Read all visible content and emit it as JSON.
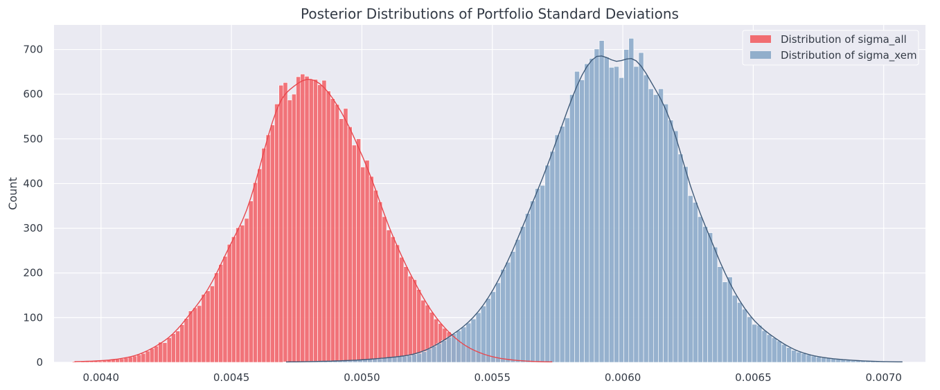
{
  "chart_data": {
    "type": "histogram",
    "title": "Posterior Distributions of Portfolio Standard Deviations",
    "xlabel": "",
    "ylabel": "Count",
    "xlim": [
      0.00382,
      0.00716
    ],
    "ylim": [
      0,
      755
    ],
    "x_ticks": [
      "0.0040",
      "0.0045",
      "0.0050",
      "0.0055",
      "0.0060",
      "0.0065",
      "0.0070"
    ],
    "x_tick_values": [
      0.004,
      0.0045,
      0.005,
      0.0055,
      0.006,
      0.0065,
      0.007
    ],
    "y_ticks": [
      "0",
      "100",
      "200",
      "300",
      "400",
      "500",
      "600",
      "700"
    ],
    "y_tick_values": [
      0,
      100,
      200,
      300,
      400,
      500,
      600,
      700
    ],
    "grid": true,
    "legend_position": "top-right",
    "series": [
      {
        "name": "Distribution of sigma_all",
        "color": "#f16d72",
        "kde_color": "#e8474d",
        "bin_start": 0.00389,
        "bin_width": 1.65e-05,
        "counts": [
          2,
          1,
          2,
          2,
          3,
          3,
          3,
          4,
          5,
          6,
          7,
          8,
          10,
          12,
          14,
          17,
          20,
          25,
          31,
          36,
          45,
          44,
          55,
          64,
          70,
          84,
          98,
          115,
          122,
          127,
          152,
          160,
          171,
          200,
          219,
          237,
          264,
          281,
          301,
          307,
          322,
          361,
          402,
          433,
          479,
          509,
          531,
          578,
          620,
          626,
          587,
          600,
          639,
          645,
          640,
          633,
          633,
          621,
          631,
          607,
          590,
          577,
          545,
          568,
          527,
          486,
          500,
          437,
          452,
          416,
          385,
          359,
          326,
          296,
          281,
          263,
          235,
          214,
          193,
          185,
          163,
          139,
          128,
          112,
          97,
          87,
          76,
          68,
          56,
          48,
          41,
          35,
          30,
          25,
          21,
          18,
          15,
          12,
          10,
          8,
          7,
          6,
          5,
          4,
          3,
          3,
          2,
          2,
          1,
          1,
          1,
          1
        ]
      },
      {
        "name": "Distribution of sigma_xem",
        "color": "#91aecb",
        "kde_color": "#3f5a78",
        "bin_start": 0.0047,
        "bin_width": 1.89e-05,
        "counts": [
          1,
          1,
          1,
          1,
          1,
          2,
          2,
          2,
          2,
          3,
          3,
          3,
          4,
          4,
          5,
          5,
          6,
          7,
          8,
          8,
          10,
          11,
          12,
          13,
          14,
          15,
          18,
          20,
          24,
          30,
          36,
          42,
          49,
          56,
          64,
          71,
          79,
          88,
          97,
          111,
          126,
          143,
          158,
          178,
          208,
          224,
          248,
          275,
          304,
          333,
          361,
          389,
          396,
          441,
          472,
          509,
          528,
          547,
          599,
          651,
          632,
          668,
          680,
          701,
          720,
          683,
          660,
          662,
          637,
          700,
          725,
          662,
          693,
          643,
          612,
          599,
          612,
          578,
          542,
          518,
          466,
          438,
          373,
          358,
          326,
          304,
          290,
          258,
          214,
          180,
          191,
          150,
          134,
          119,
          102,
          85,
          83,
          71,
          62,
          55,
          48,
          40,
          33,
          27,
          23,
          20,
          17,
          14,
          12,
          10,
          9,
          8,
          7,
          6,
          5,
          4,
          4,
          3,
          3,
          2,
          2,
          2,
          1,
          1,
          1,
          1
        ]
      }
    ]
  }
}
